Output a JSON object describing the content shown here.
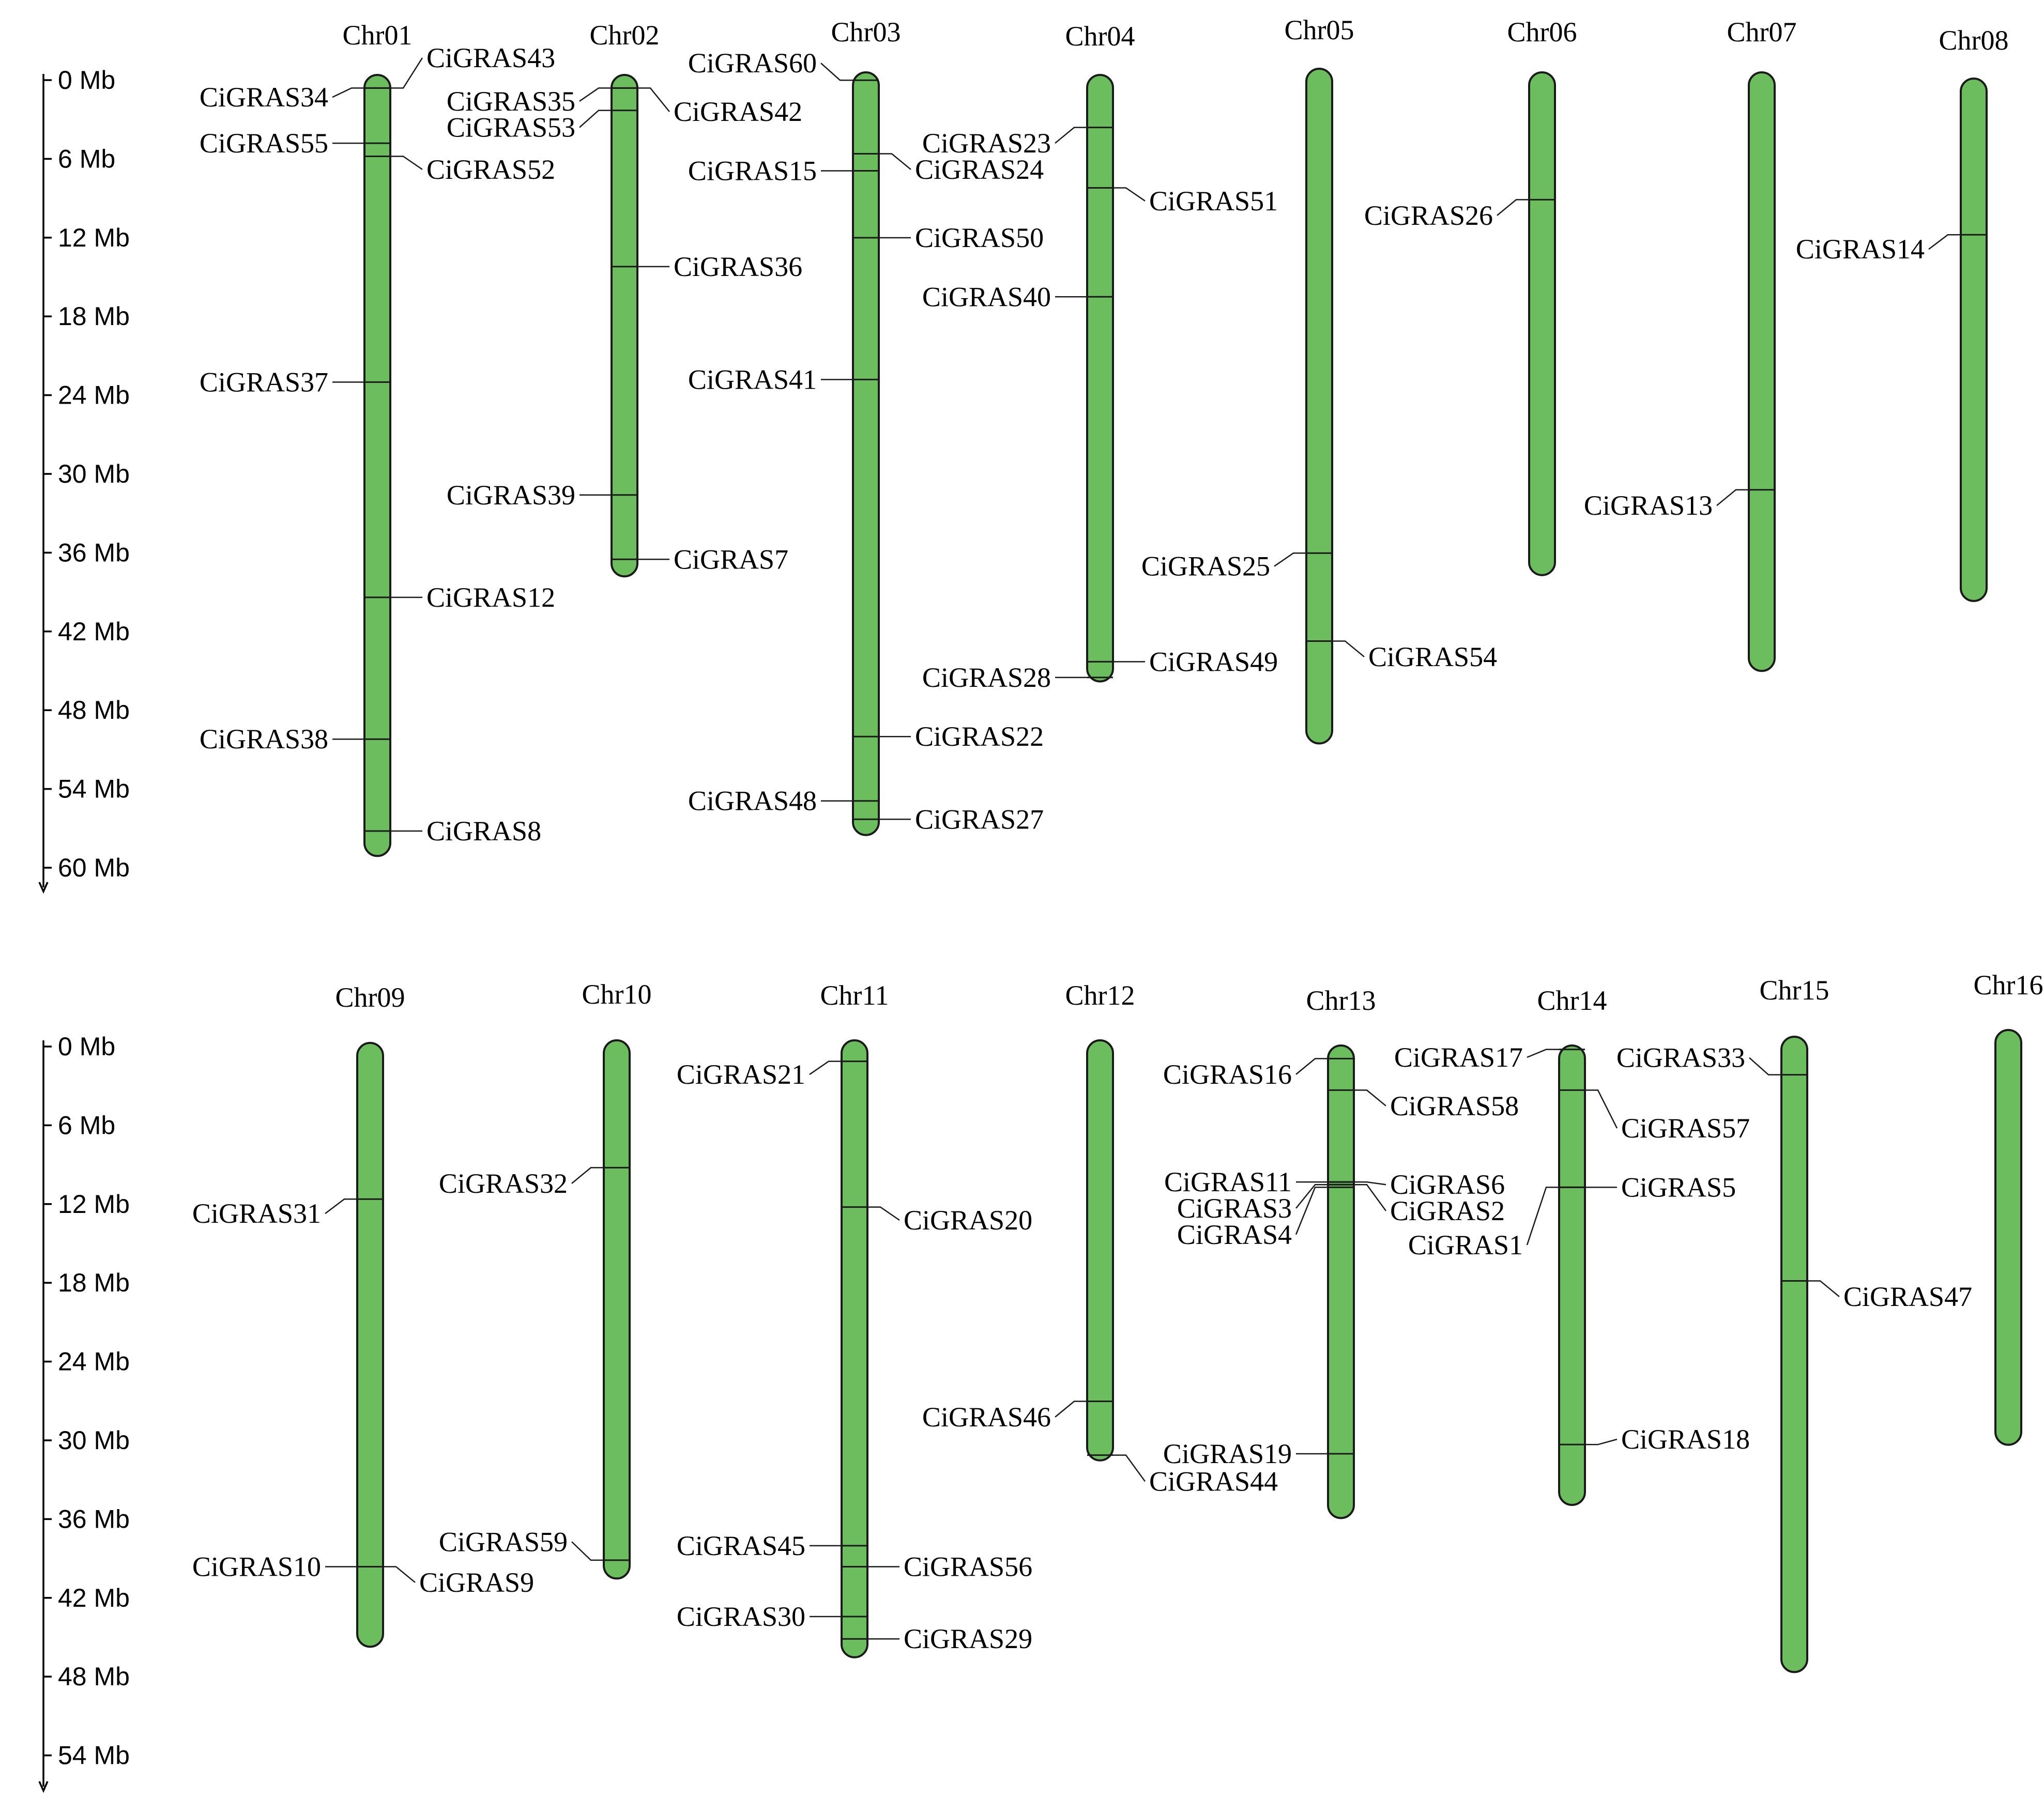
{
  "colors": {
    "chromosome": "#6cbd5d",
    "outline": "#1a1a1a"
  },
  "panels": [
    {
      "axis_ticks": [
        "0 Mb",
        "6 Mb",
        "12 Mb",
        "18 Mb",
        "24 Mb",
        "30 Mb",
        "36 Mb",
        "42 Mb",
        "48 Mb",
        "54 Mb",
        "60 Mb"
      ],
      "chromosomes": [
        {
          "name": "Chr01",
          "length_mb": 59.5,
          "genes": [
            {
              "name": "CiGRAS43",
              "pos_mb": 1.0,
              "side": "right",
              "label_mb": -1.3
            },
            {
              "name": "CiGRAS34",
              "pos_mb": 1.0,
              "side": "left",
              "label_mb": 1.7
            },
            {
              "name": "CiGRAS55",
              "pos_mb": 5.2,
              "side": "left",
              "label_mb": 5.2
            },
            {
              "name": "CiGRAS52",
              "pos_mb": 6.2,
              "side": "right",
              "label_mb": 7.2
            },
            {
              "name": "CiGRAS37",
              "pos_mb": 23.4,
              "side": "left",
              "label_mb": 23.4
            },
            {
              "name": "CiGRAS12",
              "pos_mb": 39.8,
              "side": "right",
              "label_mb": 39.8
            },
            {
              "name": "CiGRAS38",
              "pos_mb": 50.6,
              "side": "left",
              "label_mb": 50.6
            },
            {
              "name": "CiGRAS8",
              "pos_mb": 57.6,
              "side": "right",
              "label_mb": 57.6
            }
          ]
        },
        {
          "name": "Chr02",
          "length_mb": 38.2,
          "genes": [
            {
              "name": "CiGRAS35",
              "pos_mb": 1.0,
              "side": "left",
              "label_mb": 2.0
            },
            {
              "name": "CiGRAS42",
              "pos_mb": 1.0,
              "side": "right",
              "label_mb": 2.8
            },
            {
              "name": "CiGRAS53",
              "pos_mb": 2.7,
              "side": "left",
              "label_mb": 4.0
            },
            {
              "name": "CiGRAS36",
              "pos_mb": 14.6,
              "side": "right",
              "label_mb": 14.6
            },
            {
              "name": "CiGRAS39",
              "pos_mb": 32.0,
              "side": "left",
              "label_mb": 32.0
            },
            {
              "name": "CiGRAS7",
              "pos_mb": 36.9,
              "side": "right",
              "label_mb": 36.9
            }
          ]
        },
        {
          "name": "Chr03",
          "length_mb": 58.1,
          "genes": [
            {
              "name": "CiGRAS60",
              "pos_mb": 0.6,
              "side": "left",
              "label_mb": -0.7
            },
            {
              "name": "CiGRAS24",
              "pos_mb": 6.2,
              "side": "right",
              "label_mb": 7.4
            },
            {
              "name": "CiGRAS15",
              "pos_mb": 7.5,
              "side": "left",
              "label_mb": 7.5
            },
            {
              "name": "CiGRAS50",
              "pos_mb": 12.6,
              "side": "right",
              "label_mb": 12.6
            },
            {
              "name": "CiGRAS41",
              "pos_mb": 23.4,
              "side": "left",
              "label_mb": 23.4
            },
            {
              "name": "CiGRAS22",
              "pos_mb": 50.6,
              "side": "right",
              "label_mb": 50.6
            },
            {
              "name": "CiGRAS48",
              "pos_mb": 55.5,
              "side": "left",
              "label_mb": 55.5
            },
            {
              "name": "CiGRAS27",
              "pos_mb": 56.9,
              "side": "right",
              "label_mb": 56.9
            }
          ]
        },
        {
          "name": "Chr04",
          "length_mb": 46.2,
          "genes": [
            {
              "name": "CiGRAS23",
              "pos_mb": 4.0,
              "side": "left",
              "label_mb": 5.2
            },
            {
              "name": "CiGRAS51",
              "pos_mb": 8.6,
              "side": "right",
              "label_mb": 9.6
            },
            {
              "name": "CiGRAS40",
              "pos_mb": 16.9,
              "side": "left",
              "label_mb": 16.9
            },
            {
              "name": "CiGRAS49",
              "pos_mb": 44.7,
              "side": "right",
              "label_mb": 44.7
            },
            {
              "name": "CiGRAS28",
              "pos_mb": 45.9,
              "side": "left",
              "label_mb": 45.9
            }
          ]
        },
        {
          "name": "Chr05",
          "length_mb": 51.4,
          "genes": [
            {
              "name": "CiGRAS25",
              "pos_mb": 36.9,
              "side": "left",
              "label_mb": 37.9
            },
            {
              "name": "CiGRAS54",
              "pos_mb": 43.6,
              "side": "right",
              "label_mb": 44.8
            }
          ]
        },
        {
          "name": "Chr06",
          "length_mb": 38.3,
          "genes": [
            {
              "name": "CiGRAS26",
              "pos_mb": 9.7,
              "side": "left",
              "label_mb": 10.9
            }
          ]
        },
        {
          "name": "Chr07",
          "length_mb": 45.6,
          "genes": [
            {
              "name": "CiGRAS13",
              "pos_mb": 31.8,
              "side": "left",
              "label_mb": 33.0
            }
          ]
        },
        {
          "name": "Chr08",
          "length_mb": 39.8,
          "genes": [
            {
              "name": "CiGRAS14",
              "pos_mb": 11.9,
              "side": "left",
              "label_mb": 13.0
            }
          ]
        }
      ]
    },
    {
      "axis_ticks": [
        "0 Mb",
        "6 Mb",
        "12 Mb",
        "18 Mb",
        "24 Mb",
        "30 Mb",
        "36 Mb",
        "42 Mb",
        "48 Mb",
        "54 Mb"
      ],
      "chromosomes": [
        {
          "name": "Chr09",
          "length_mb": 46.0,
          "genes": [
            {
              "name": "CiGRAS31",
              "pos_mb": 11.9,
              "side": "left",
              "label_mb": 13.0
            },
            {
              "name": "CiGRAS10",
              "pos_mb": 39.9,
              "side": "left",
              "label_mb": 39.9
            },
            {
              "name": "CiGRAS9",
              "pos_mb": 39.9,
              "side": "right",
              "label_mb": 41.1
            }
          ]
        },
        {
          "name": "Chr10",
          "length_mb": 41.0,
          "genes": [
            {
              "name": "CiGRAS32",
              "pos_mb": 9.7,
              "side": "left",
              "label_mb": 10.9
            },
            {
              "name": "CiGRAS59",
              "pos_mb": 39.6,
              "side": "left",
              "label_mb": 38.2
            }
          ]
        },
        {
          "name": "Chr11",
          "length_mb": 47.0,
          "genes": [
            {
              "name": "CiGRAS21",
              "pos_mb": 1.6,
              "side": "left",
              "label_mb": 2.6
            },
            {
              "name": "CiGRAS20",
              "pos_mb": 12.7,
              "side": "right",
              "label_mb": 13.7
            },
            {
              "name": "CiGRAS45",
              "pos_mb": 38.5,
              "side": "left",
              "label_mb": 38.5
            },
            {
              "name": "CiGRAS56",
              "pos_mb": 40.1,
              "side": "right",
              "label_mb": 40.1
            },
            {
              "name": "CiGRAS30",
              "pos_mb": 43.9,
              "side": "left",
              "label_mb": 43.9
            },
            {
              "name": "CiGRAS29",
              "pos_mb": 45.6,
              "side": "right",
              "label_mb": 45.6
            }
          ]
        },
        {
          "name": "Chr12",
          "length_mb": 32.0,
          "genes": [
            {
              "name": "CiGRAS46",
              "pos_mb": 27.5,
              "side": "left",
              "label_mb": 28.7
            },
            {
              "name": "CiGRAS44",
              "pos_mb": 31.6,
              "side": "right",
              "label_mb": 33.6
            }
          ]
        },
        {
          "name": "Chr13",
          "length_mb": 36.0,
          "genes": [
            {
              "name": "CiGRAS16",
              "pos_mb": 1.0,
              "side": "left",
              "label_mb": 2.2
            },
            {
              "name": "CiGRAS58",
              "pos_mb": 3.4,
              "side": "right",
              "label_mb": 4.6
            },
            {
              "name": "CiGRAS11",
              "pos_mb": 10.4,
              "side": "left",
              "label_mb": 10.4
            },
            {
              "name": "CiGRAS6",
              "pos_mb": 10.4,
              "side": "right",
              "label_mb": 10.6
            },
            {
              "name": "CiGRAS3",
              "pos_mb": 10.6,
              "side": "left",
              "label_mb": 12.4
            },
            {
              "name": "CiGRAS2",
              "pos_mb": 10.6,
              "side": "right",
              "label_mb": 12.6
            },
            {
              "name": "CiGRAS4",
              "pos_mb": 10.8,
              "side": "left",
              "label_mb": 14.4
            },
            {
              "name": "CiGRAS19",
              "pos_mb": 31.1,
              "side": "left",
              "label_mb": 31.1
            }
          ]
        },
        {
          "name": "Chr14",
          "length_mb": 35.0,
          "genes": [
            {
              "name": "CiGRAS17",
              "pos_mb": 0.3,
              "side": "left",
              "label_mb": 0.9
            },
            {
              "name": "CiGRAS57",
              "pos_mb": 3.4,
              "side": "right",
              "label_mb": 6.3
            },
            {
              "name": "CiGRAS5",
              "pos_mb": 10.8,
              "side": "right",
              "label_mb": 10.8
            },
            {
              "name": "CiGRAS1",
              "pos_mb": 10.8,
              "side": "left",
              "label_mb": 15.2
            },
            {
              "name": "CiGRAS18",
              "pos_mb": 30.4,
              "side": "right",
              "label_mb": 30.0
            }
          ]
        },
        {
          "name": "Chr15",
          "length_mb": 48.4,
          "genes": [
            {
              "name": "CiGRAS33",
              "pos_mb": 2.9,
              "side": "left",
              "label_mb": 1.6
            },
            {
              "name": "CiGRAS47",
              "pos_mb": 18.6,
              "side": "right",
              "label_mb": 19.8
            }
          ]
        },
        {
          "name": "Chr16",
          "length_mb": 31.6,
          "genes": []
        }
      ]
    }
  ]
}
